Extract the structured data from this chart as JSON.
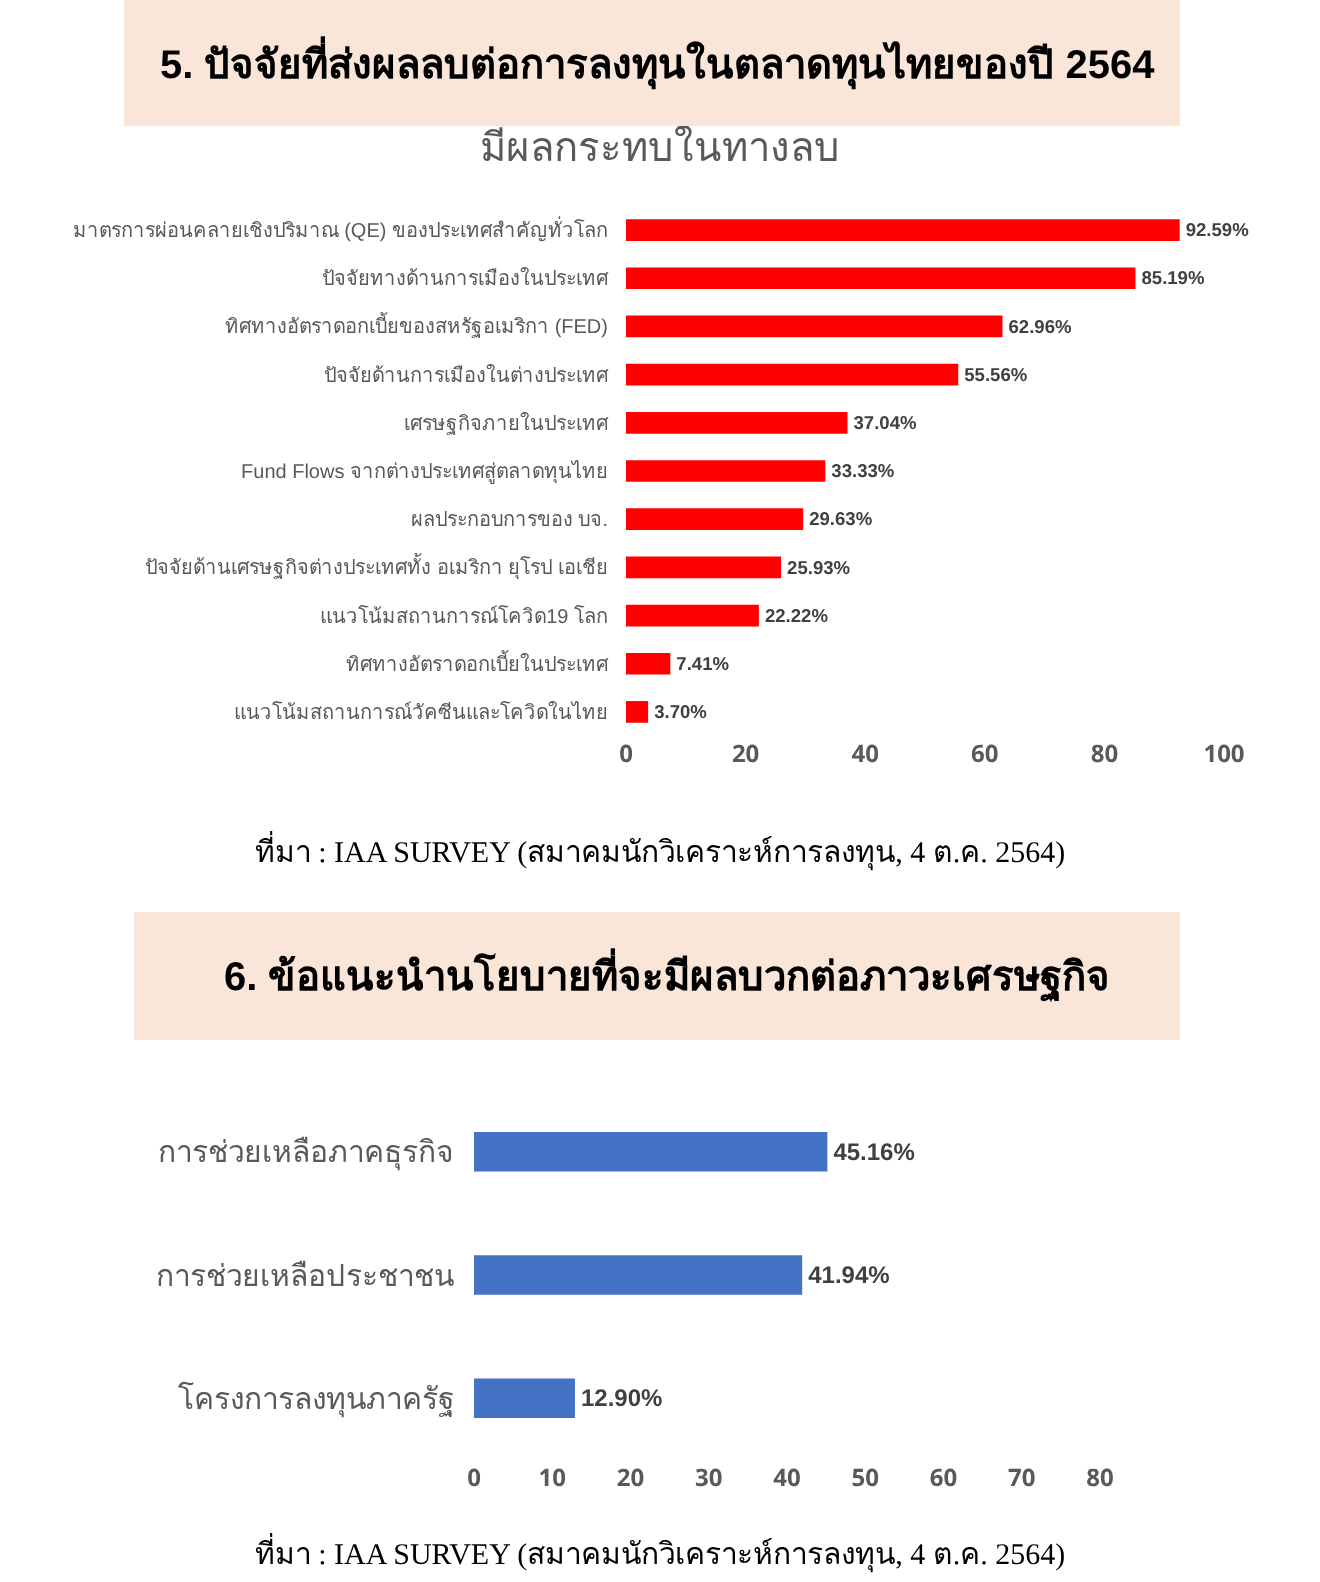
{
  "chart_data": [
    {
      "type": "bar",
      "orientation": "horizontal",
      "title": "5. ปัจจัยที่ส่งผลลบต่อการลงทุนในตลาดทุนไทยของปี 2564",
      "subtitle": "มีผลกระทบในทางลบ",
      "categories": [
        "มาตรการผ่อนคลายเชิงปริมาณ (QE) ของประเทศสำคัญทั่วโลก",
        "ปัจจัยทางด้านการเมืองในประเทศ",
        "ทิศทางอัตราดอกเบี้ยของสหรัฐอเมริกา (FED)",
        "ปัจจัยด้านการเมืองในต่างประเทศ",
        "เศรษฐกิจภายในประเทศ",
        "Fund Flows จากต่างประเทศสู่ตลาดทุนไทย",
        "ผลประกอบการของ บจ.",
        "ปัจจัยด้านเศรษฐกิจต่างประเทศทั้ง อเมริกา ยุโรป เอเชีย",
        "แนวโน้มสถานการณ์โควิด19 โลก",
        "ทิศทางอัตราดอกเบี้ยในประเทศ",
        "แนวโน้มสถานการณ์วัคซีนและโควิดในไทย"
      ],
      "values": [
        92.59,
        85.19,
        62.96,
        55.56,
        37.04,
        33.33,
        29.63,
        25.93,
        22.22,
        7.41,
        3.7
      ],
      "value_labels": [
        "92.59%",
        "85.19%",
        "62.96%",
        "55.56%",
        "37.04%",
        "33.33%",
        "29.63%",
        "25.93%",
        "22.22%",
        "7.41%",
        "3.70%"
      ],
      "color": "#ff0000",
      "xlim": [
        0,
        100
      ],
      "xticks": [
        0,
        20,
        40,
        60,
        80,
        100
      ],
      "grid": false,
      "legend": false,
      "annotations": [
        "ที่มา : IAA SURVEY (สมาคมนักวิเคราะห์การลงทุน, 4 ต.ค. 2564)"
      ]
    },
    {
      "type": "bar",
      "orientation": "horizontal",
      "title": "6. ข้อแนะนำนโยบายที่จะมีผลบวกต่อภาวะเศรษฐกิจ",
      "categories": [
        "การช่วยเหลือภาคธุรกิจ",
        "การช่วยเหลือประชาชน",
        "โครงการลงทุนภาครัฐ"
      ],
      "values": [
        45.16,
        41.94,
        12.9
      ],
      "value_labels": [
        "45.16%",
        "41.94%",
        "12.90%"
      ],
      "color": "#4472c4",
      "xlim": [
        0,
        80
      ],
      "xticks": [
        0,
        10,
        20,
        30,
        40,
        50,
        60,
        70,
        80
      ],
      "grid": false,
      "legend": false,
      "annotations": [
        "ที่มา : IAA SURVEY (สมาคมนักวิเคราะห์การลงทุน, 4 ต.ค. 2564)"
      ]
    }
  ]
}
